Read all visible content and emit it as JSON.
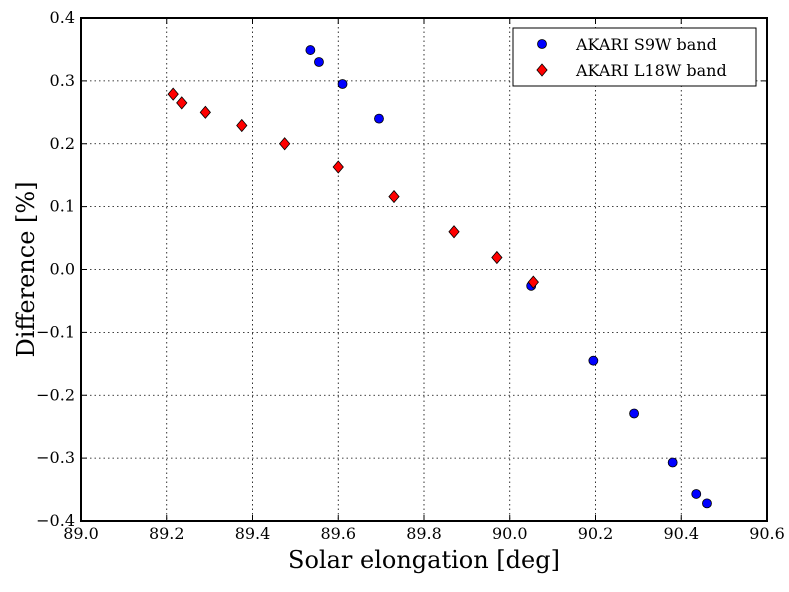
{
  "chart_data": {
    "type": "scatter",
    "title": "",
    "xlabel": "Solar elongation [deg]",
    "ylabel": "Difference [%]",
    "xlim": [
      89.0,
      90.6
    ],
    "ylim": [
      -0.4,
      0.4
    ],
    "xticks": [
      89.0,
      89.2,
      89.4,
      89.6,
      89.8,
      90.0,
      90.2,
      90.4,
      90.6
    ],
    "xtick_labels": [
      "89.0",
      "89.2",
      "89.4",
      "89.6",
      "89.8",
      "90.0",
      "90.2",
      "90.4",
      "90.6"
    ],
    "yticks": [
      0.4,
      0.3,
      0.2,
      0.1,
      0.0,
      -0.1,
      -0.2,
      -0.3,
      -0.4
    ],
    "ytick_labels": [
      "0.4",
      "0.3",
      "0.2",
      "0.1",
      "0.0",
      "−0.1",
      "−0.2",
      "−0.3",
      "−0.4"
    ],
    "grid": true,
    "legend_position": "top-right",
    "series": [
      {
        "name": "AKARI S9W band",
        "marker": "circle",
        "color": "#0000ff",
        "x": [
          89.535,
          89.555,
          89.61,
          89.695,
          90.05,
          90.195,
          90.29,
          90.38,
          90.435,
          90.46
        ],
        "y": [
          0.349,
          0.33,
          0.295,
          0.24,
          -0.026,
          -0.145,
          -0.229,
          -0.307,
          -0.357,
          -0.372
        ]
      },
      {
        "name": "AKARI L18W band",
        "marker": "diamond",
        "color": "#ff0000",
        "x": [
          89.215,
          89.235,
          89.29,
          89.375,
          89.475,
          89.6,
          89.73,
          89.87,
          89.97,
          90.055
        ],
        "y": [
          0.279,
          0.265,
          0.25,
          0.229,
          0.2,
          0.163,
          0.116,
          0.06,
          0.019,
          -0.02
        ]
      }
    ]
  }
}
